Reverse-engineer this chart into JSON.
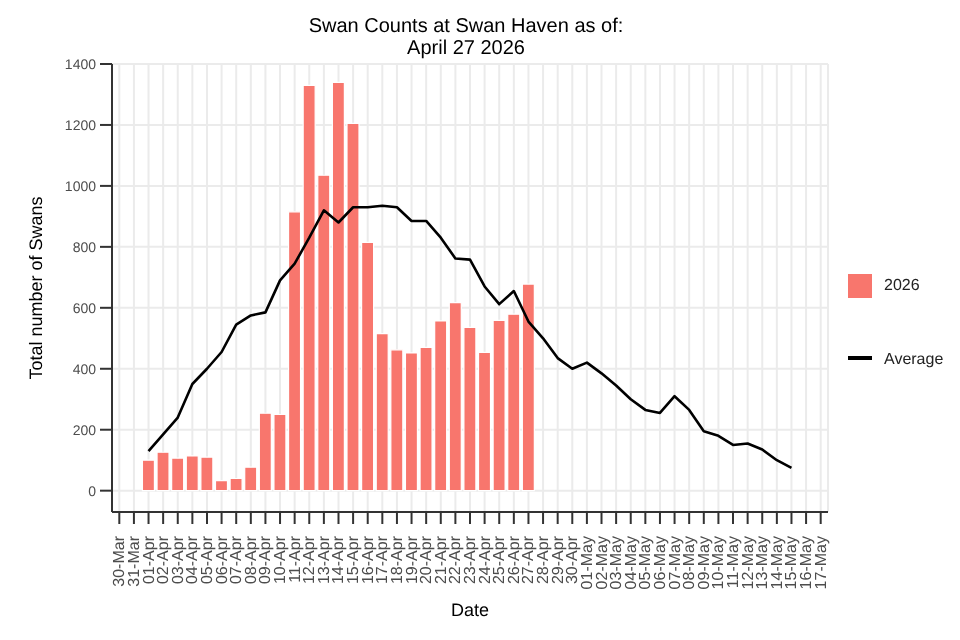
{
  "chart_data": {
    "type": "bar",
    "title": "Swan Counts at Swan Haven as of:\nApril 27 2026",
    "xlabel": "Date",
    "ylabel": "Total number of Swans",
    "categories": [
      "30-Mar",
      "31-Mar",
      "01-Apr",
      "02-Apr",
      "03-Apr",
      "04-Apr",
      "05-Apr",
      "06-Apr",
      "07-Apr",
      "08-Apr",
      "09-Apr",
      "10-Apr",
      "11-Apr",
      "12-Apr",
      "13-Apr",
      "14-Apr",
      "15-Apr",
      "16-Apr",
      "17-Apr",
      "18-Apr",
      "19-Apr",
      "20-Apr",
      "21-Apr",
      "22-Apr",
      "23-Apr",
      "24-Apr",
      "25-Apr",
      "26-Apr",
      "27-Apr",
      "28-Apr",
      "29-Apr",
      "30-Apr",
      "01-May",
      "02-May",
      "03-May",
      "04-May",
      "05-May",
      "06-May",
      "07-May",
      "08-May",
      "09-May",
      "10-May",
      "11-May",
      "12-May",
      "13-May",
      "14-May",
      "15-May",
      "16-May",
      "17-May"
    ],
    "series": [
      {
        "name": "2026",
        "color": "#f8766d",
        "values": [
          null,
          null,
          100,
          126,
          107,
          114,
          110,
          33,
          40,
          77,
          254,
          250,
          915,
          1330,
          1035,
          1340,
          1205,
          815,
          515,
          462,
          452,
          470,
          557,
          617,
          536,
          454,
          559,
          579,
          678,
          null,
          null,
          null,
          null,
          null,
          null,
          null,
          null,
          null,
          null,
          null,
          null,
          null,
          null,
          null,
          null,
          null,
          null,
          null,
          null
        ]
      },
      {
        "name": "Average",
        "type": "line",
        "color": "#000000",
        "values": [
          null,
          null,
          130,
          185,
          240,
          350,
          400,
          455,
          545,
          575,
          585,
          690,
          745,
          830,
          920,
          880,
          930,
          930,
          935,
          930,
          885,
          885,
          830,
          762,
          758,
          670,
          612,
          655,
          555,
          500,
          435,
          400,
          420,
          385,
          345,
          300,
          265,
          255,
          310,
          265,
          195,
          180,
          150,
          155,
          135,
          100,
          75,
          null,
          null
        ]
      }
    ],
    "ylim": [
      -70,
      1400
    ],
    "yticks": [
      0,
      200,
      400,
      600,
      800,
      1000,
      1200,
      1400
    ],
    "grid": true,
    "legend": "right",
    "marker": "none",
    "line_style": "solid"
  }
}
